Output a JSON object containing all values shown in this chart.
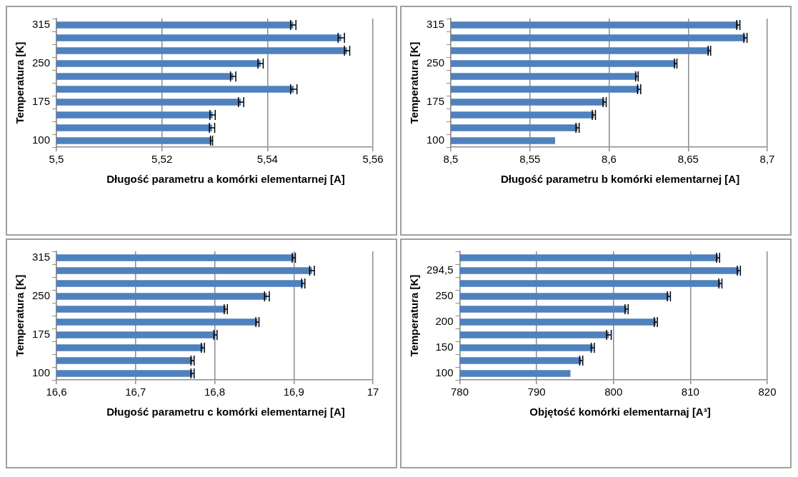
{
  "chart_data": [
    {
      "type": "bar",
      "orientation": "horizontal",
      "xlabel": "Długość parametru a komórki elementarnej [A]",
      "ylabel": "Temperatura [K]",
      "categories": [
        "315",
        null,
        null,
        "250",
        null,
        null,
        "175",
        null,
        null,
        "100"
      ],
      "color": "#4f81bd",
      "values": [
        5.5449,
        5.554,
        5.5551,
        5.5387,
        5.5335,
        5.545,
        5.535,
        5.5296,
        5.5295,
        5.5294
      ],
      "errors": [
        0.0005,
        0.0006,
        0.0005,
        0.0005,
        0.0005,
        0.0006,
        0.0005,
        0.0005,
        0.0005,
        0.0002
      ],
      "xlim": [
        5.5,
        5.56
      ],
      "xticks": [
        {
          "value": 5.5,
          "label": "5,5"
        },
        {
          "value": 5.52,
          "label": "5,52"
        },
        {
          "value": 5.54,
          "label": "5,54"
        },
        {
          "value": 5.56,
          "label": "5,56"
        }
      ],
      "grid": "x"
    },
    {
      "type": "bar",
      "orientation": "horizontal",
      "xlabel": "Długość parametru b komórki elementarnej [A]",
      "ylabel": "Temperatura [K]",
      "categories": [
        "315",
        null,
        null,
        "250",
        null,
        null,
        "175",
        null,
        null,
        "100"
      ],
      "color": "#4f81bd",
      "values": [
        8.6817,
        8.6862,
        8.6634,
        8.6421,
        8.6176,
        8.619,
        8.5972,
        8.5904,
        8.5801,
        8.5659
      ],
      "errors": [
        0.001,
        0.001,
        0.0008,
        0.0008,
        0.0008,
        0.001,
        0.001,
        0.001,
        0.001,
        null
      ],
      "xlim": [
        8.5,
        8.7
      ],
      "xticks": [
        {
          "value": 8.5,
          "label": "8,5"
        },
        {
          "value": 8.55,
          "label": "8,55"
        },
        {
          "value": 8.6,
          "label": "8,6"
        },
        {
          "value": 8.65,
          "label": "8,65"
        },
        {
          "value": 8.7,
          "label": "8,7"
        }
      ],
      "grid": "x"
    },
    {
      "type": "bar",
      "orientation": "horizontal",
      "xlabel": "Długość parametru c komórki elementarnej [A]",
      "ylabel": "Temperatura [K]",
      "categories": [
        "315",
        null,
        null,
        "250",
        null,
        null,
        "175",
        null,
        null,
        "100"
      ],
      "color": "#4f81bd",
      "values": [
        16.9,
        16.923,
        16.912,
        16.866,
        16.814,
        16.854,
        16.801,
        16.785,
        16.772,
        16.772
      ],
      "errors": [
        0.002,
        0.003,
        0.002,
        0.003,
        0.002,
        0.002,
        0.002,
        0.002,
        0.002,
        0.002
      ],
      "xlim": [
        16.6,
        17
      ],
      "xticks": [
        {
          "value": 16.6,
          "label": "16,6"
        },
        {
          "value": 16.7,
          "label": "16,7"
        },
        {
          "value": 16.8,
          "label": "16,8"
        },
        {
          "value": 16.9,
          "label": "16,9"
        },
        17
      ],
      "grid": "x"
    },
    {
      "type": "bar",
      "orientation": "horizontal",
      "xlabel": "Objętość komórki elementarnaj [A³]",
      "ylabel": "Temperatura [K]",
      "categories": [
        null,
        "294,5",
        null,
        "250",
        null,
        "200",
        null,
        "150",
        null,
        "100"
      ],
      "color": "#4f81bd",
      "values": [
        813.6,
        816.3,
        813.9,
        807.2,
        801.7,
        805.5,
        799.4,
        797.3,
        795.8,
        794.4
      ],
      "errors": [
        0.2,
        0.2,
        0.2,
        0.2,
        0.2,
        0.2,
        0.3,
        0.2,
        0.2,
        null
      ],
      "xlim": [
        780,
        820
      ],
      "xticks": [
        780,
        790,
        800,
        810,
        820
      ],
      "grid": "x"
    }
  ]
}
